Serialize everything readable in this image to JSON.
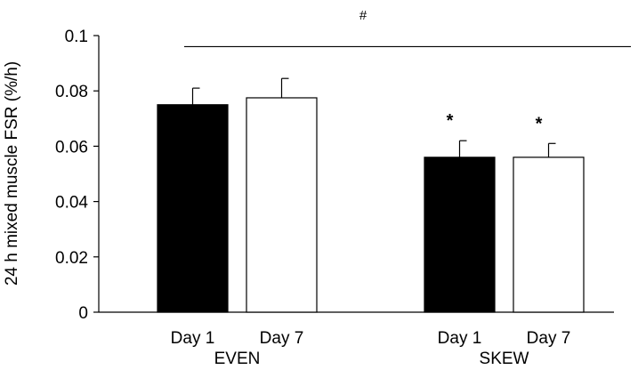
{
  "chart_data": {
    "type": "bar",
    "ylabel": "24 h mixed muscle FSR (%/h)",
    "ylim": [
      0,
      0.1
    ],
    "yticks": [
      "0",
      "0.02",
      "0.04",
      "0.06",
      "0.08",
      "0.1"
    ],
    "groups": [
      {
        "label": "EVEN",
        "bars": [
          {
            "category": "Day 1",
            "value": 0.075,
            "error": 0.006,
            "fill": "#000000",
            "annotation": ""
          },
          {
            "category": "Day  7",
            "value": 0.0775,
            "error": 0.007,
            "fill": "#ffffff",
            "annotation": ""
          }
        ]
      },
      {
        "label": "SKEW",
        "bars": [
          {
            "category": "Day 1",
            "value": 0.056,
            "error": 0.006,
            "fill": "#000000",
            "annotation": "*"
          },
          {
            "category": "Day 7",
            "value": 0.056,
            "error": 0.005,
            "fill": "#ffffff",
            "annotation": "*"
          }
        ]
      }
    ],
    "group_comparison": {
      "symbol": "#",
      "value": 0.096
    },
    "grid": false,
    "legend": "none"
  }
}
